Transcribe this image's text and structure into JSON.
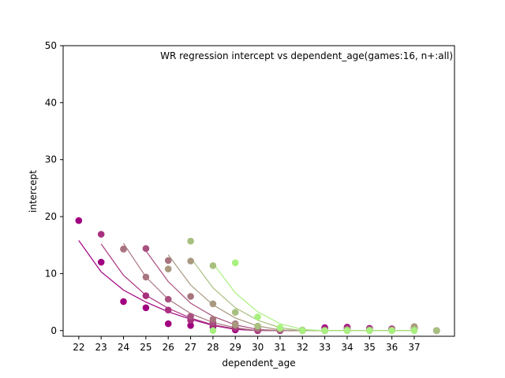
{
  "chart_data": {
    "type": "scatter",
    "title": "WR regression intercept vs dependent_age(games:16, n+:all)",
    "xlabel": "dependent_age",
    "ylabel": "intercept",
    "xlim": [
      21.3,
      38.8
    ],
    "ylim": [
      -1,
      50
    ],
    "x_ticks": [
      22,
      23,
      24,
      25,
      26,
      27,
      28,
      29,
      30,
      31,
      32,
      33,
      34,
      35,
      36,
      37
    ],
    "y_ticks": [
      0,
      10,
      20,
      30,
      40,
      50
    ],
    "grid": false,
    "series": [
      {
        "color": "#a0007f",
        "points": [
          [
            22,
            19.3
          ],
          [
            23,
            12.0
          ],
          [
            24,
            5.1
          ],
          [
            25,
            4.0
          ],
          [
            26,
            1.2
          ],
          [
            27,
            0.9
          ],
          [
            28,
            0.6
          ],
          [
            29,
            0.1
          ],
          [
            30,
            0
          ],
          [
            31,
            0
          ],
          [
            32,
            0
          ],
          [
            33,
            0.5
          ],
          [
            34,
            0.6
          ],
          [
            35,
            0.4
          ],
          [
            36,
            0.3
          ],
          [
            37,
            0.5
          ],
          [
            38,
            0
          ]
        ],
        "fit": [
          [
            22,
            15.8
          ],
          [
            23,
            10.3
          ],
          [
            24,
            7.1
          ],
          [
            25,
            5.0
          ],
          [
            26,
            3.3
          ],
          [
            27,
            2.0
          ],
          [
            28,
            0.9
          ],
          [
            29,
            0.2
          ],
          [
            30,
            0
          ],
          [
            31,
            0
          ],
          [
            32,
            0
          ],
          [
            33,
            0
          ],
          [
            34,
            0
          ],
          [
            35,
            0
          ],
          [
            36,
            0
          ],
          [
            37,
            0
          ]
        ]
      },
      {
        "color": "#a8307f",
        "points": [
          [
            23,
            16.9
          ],
          [
            24,
            14.3
          ],
          [
            25,
            6.1
          ],
          [
            26,
            3.6
          ],
          [
            27,
            1.8
          ],
          [
            28,
            1.0
          ],
          [
            29,
            0.4
          ],
          [
            30,
            0
          ],
          [
            31,
            0
          ],
          [
            32,
            0
          ],
          [
            33,
            0.3
          ],
          [
            34,
            0.4
          ],
          [
            35,
            0.3
          ],
          [
            36,
            0.2
          ],
          [
            37,
            0.3
          ],
          [
            38,
            0
          ]
        ],
        "fit": [
          [
            23,
            15.2
          ],
          [
            24,
            9.7
          ],
          [
            25,
            6.2
          ],
          [
            26,
            3.9
          ],
          [
            27,
            2.2
          ],
          [
            28,
            1.0
          ],
          [
            29,
            0.3
          ],
          [
            30,
            0
          ],
          [
            31,
            0
          ],
          [
            32,
            0
          ],
          [
            33,
            0
          ],
          [
            34,
            0
          ],
          [
            35,
            0
          ],
          [
            36,
            0
          ],
          [
            37,
            0
          ]
        ]
      },
      {
        "color": "#a8507f",
        "points": [
          [
            25,
            14.4
          ],
          [
            26,
            5.5
          ],
          [
            27,
            2.5
          ],
          [
            28,
            1.4
          ],
          [
            29,
            0.8
          ],
          [
            30,
            0.2
          ],
          [
            31,
            0.1
          ],
          [
            32,
            0
          ],
          [
            33,
            0
          ],
          [
            34,
            0.3
          ],
          [
            35,
            0.2
          ],
          [
            36,
            0.2
          ],
          [
            37,
            0.4
          ],
          [
            38,
            0
          ]
        ],
        "fit": [
          [
            25,
            14.0
          ],
          [
            26,
            8.6
          ],
          [
            27,
            4.8
          ],
          [
            28,
            2.5
          ],
          [
            29,
            1.0
          ],
          [
            30,
            0.2
          ],
          [
            31,
            0
          ],
          [
            32,
            0
          ],
          [
            33,
            0
          ],
          [
            34,
            0
          ],
          [
            35,
            0
          ],
          [
            36,
            0
          ],
          [
            37,
            0
          ]
        ]
      },
      {
        "color": "#a8757f",
        "points": [
          [
            24,
            14.3
          ],
          [
            25,
            9.4
          ],
          [
            26,
            12.3
          ],
          [
            27,
            6.0
          ],
          [
            28,
            2.0
          ],
          [
            29,
            1.2
          ],
          [
            30,
            0.4
          ],
          [
            31,
            0.2
          ],
          [
            32,
            0
          ],
          [
            33,
            0
          ],
          [
            34,
            0.2
          ],
          [
            35,
            0.1
          ],
          [
            36,
            0.1
          ],
          [
            37,
            0.5
          ],
          [
            38,
            0
          ]
        ],
        "fit": [
          [
            24,
            15.3
          ],
          [
            25,
            9.4
          ],
          [
            26,
            5.5
          ],
          [
            27,
            3.0
          ],
          [
            28,
            1.4
          ],
          [
            29,
            0.5
          ],
          [
            30,
            0
          ],
          [
            31,
            0
          ],
          [
            32,
            0
          ],
          [
            33,
            0
          ],
          [
            34,
            0
          ],
          [
            35,
            0
          ],
          [
            36,
            0
          ],
          [
            37,
            0
          ]
        ]
      },
      {
        "color": "#a89a7f",
        "points": [
          [
            26,
            10.8
          ],
          [
            27,
            12.2
          ],
          [
            28,
            4.7
          ],
          [
            29,
            1.0
          ],
          [
            30,
            0.8
          ],
          [
            31,
            0.3
          ],
          [
            32,
            0
          ],
          [
            33,
            0
          ],
          [
            34,
            0.1
          ],
          [
            35,
            0.1
          ],
          [
            36,
            0.1
          ],
          [
            37,
            0.7
          ],
          [
            38,
            0
          ]
        ],
        "fit": [
          [
            26,
            13.3
          ],
          [
            27,
            8.0
          ],
          [
            28,
            4.5
          ],
          [
            29,
            2.2
          ],
          [
            30,
            0.8
          ],
          [
            31,
            0.1
          ],
          [
            32,
            0
          ],
          [
            33,
            0
          ],
          [
            34,
            0
          ],
          [
            35,
            0
          ],
          [
            36,
            0
          ],
          [
            37,
            0
          ]
        ]
      },
      {
        "color": "#a8c07f",
        "points": [
          [
            27,
            15.7
          ],
          [
            28,
            11.4
          ],
          [
            29,
            3.2
          ],
          [
            30,
            0.8
          ],
          [
            31,
            0.4
          ],
          [
            32,
            0.1
          ],
          [
            33,
            0
          ],
          [
            34,
            0
          ],
          [
            35,
            0
          ],
          [
            36,
            0
          ],
          [
            37,
            0.2
          ],
          [
            38,
            0
          ]
        ],
        "fit": [
          [
            27,
            12.8
          ],
          [
            28,
            7.5
          ],
          [
            29,
            4.0
          ],
          [
            30,
            1.8
          ],
          [
            31,
            0.5
          ],
          [
            32,
            0
          ],
          [
            33,
            0
          ],
          [
            34,
            0
          ],
          [
            35,
            0
          ],
          [
            36,
            0
          ],
          [
            37,
            0
          ]
        ]
      },
      {
        "color": "#a8f07f",
        "points": [
          [
            28,
            0
          ],
          [
            29,
            11.9
          ],
          [
            30,
            2.4
          ],
          [
            31,
            0.5
          ],
          [
            32,
            0
          ],
          [
            33,
            0
          ],
          [
            34,
            0
          ],
          [
            35,
            0
          ],
          [
            36,
            0
          ],
          [
            37,
            0
          ]
        ],
        "fit": [
          [
            28,
            11.8
          ],
          [
            29,
            6.6
          ],
          [
            30,
            3.3
          ],
          [
            31,
            1.2
          ],
          [
            32,
            0.2
          ],
          [
            33,
            0
          ],
          [
            34,
            0
          ],
          [
            35,
            0
          ],
          [
            36,
            0
          ],
          [
            37,
            0
          ]
        ]
      }
    ]
  }
}
